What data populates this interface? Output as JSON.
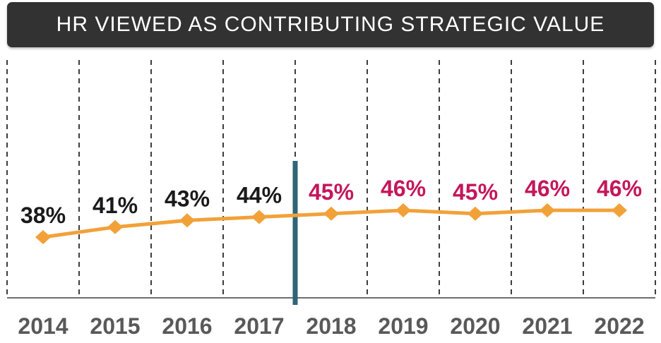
{
  "header": {
    "title": "HR VIEWED AS CONTRIBUTING STRATEGIC VALUE",
    "bg_color": "#323232",
    "text_color": "#ffffff"
  },
  "chart_data": {
    "type": "line",
    "title": "HR VIEWED AS CONTRIBUTING STRATEGIC VALUE",
    "categories": [
      "2014",
      "2015",
      "2016",
      "2017",
      "2018",
      "2019",
      "2020",
      "2021",
      "2022"
    ],
    "values": [
      38,
      41,
      43,
      44,
      45,
      46,
      45,
      46,
      46
    ],
    "labels": [
      "38%",
      "41%",
      "43%",
      "44%",
      "45%",
      "46%",
      "45%",
      "46%",
      "46%"
    ],
    "label_colors": [
      "#1a1a1a",
      "#1a1a1a",
      "#1a1a1a",
      "#1a1a1a",
      "#c4175b",
      "#c4175b",
      "#c4175b",
      "#c4175b",
      "#c4175b"
    ],
    "series_color": "#f2a139",
    "divider_after_index": 3,
    "divider_color": "#2e6577",
    "gridline_color": "#3d3d3d",
    "axis_color": "#6e6e6e",
    "year_label_color": "#595959",
    "xlabel": "",
    "ylabel": "",
    "ylim": [
      35,
      50
    ],
    "grid": "vertical-dashed",
    "legend": "none"
  }
}
